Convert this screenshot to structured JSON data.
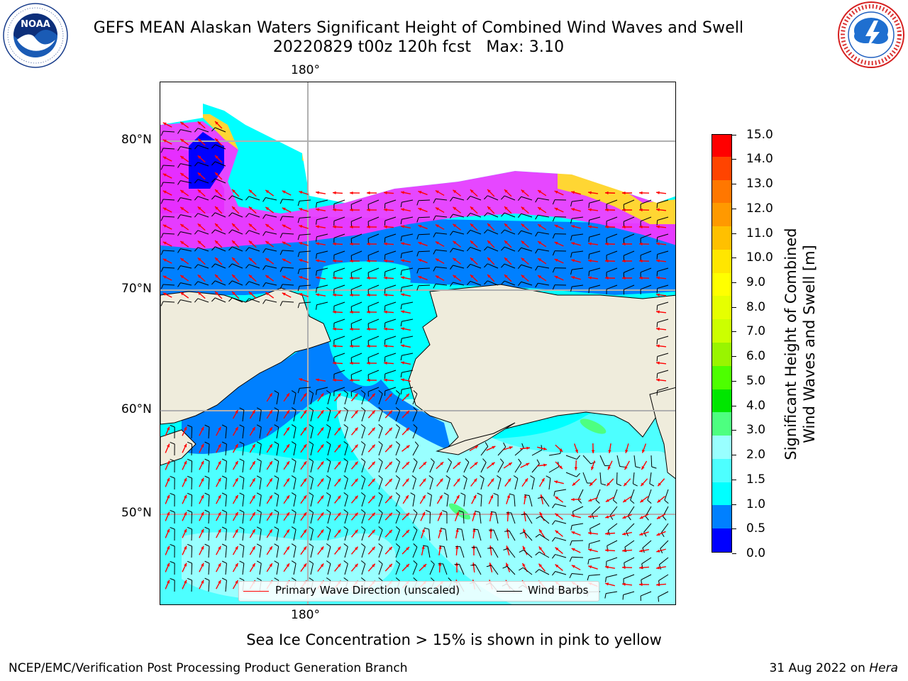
{
  "title": {
    "line1": "GEFS MEAN Alaskan Waters Significant Height of Combined Wind Waves and Swell",
    "line2": "20220829 t00z 120h fcst   Max: 3.10"
  },
  "logos": {
    "left": {
      "name": "noaa-logo",
      "text": "NOAA",
      "ring_text": "NATIONAL OCEANIC AND ATMOSPHERIC ADMINISTRATION · U.S. DEPARTMENT OF COMMERCE"
    },
    "right": {
      "name": "national-weather-service-logo",
      "ring_text": "NATIONAL WEATHER SERVICE"
    }
  },
  "map": {
    "longitude_label_top": "180°",
    "longitude_label_bottom": "180°",
    "latitude_labels": [
      "80°N",
      "70°N",
      "60°N",
      "50°N"
    ],
    "colors": {
      "land": "#efecdc",
      "ice": "#ffffff",
      "wind_barb": "#000000",
      "wave_direction": "#ff0000"
    }
  },
  "legend": {
    "wave_direction": "Primary Wave Direction (unscaled)",
    "wind_barbs": "Wind Barbs"
  },
  "colorbar": {
    "ticks": [
      "15.0",
      "14.0",
      "13.0",
      "12.0",
      "11.0",
      "10.0",
      "9.0",
      "8.0",
      "7.0",
      "6.0",
      "5.0",
      "4.0",
      "3.0",
      "2.0",
      "1.5",
      "1.0",
      "0.5",
      "0.0"
    ],
    "colors": [
      "#0000ff",
      "#0080ff",
      "#00ffff",
      "#4dffff",
      "#99ffff",
      "#4dff80",
      "#00e600",
      "#4dff00",
      "#99f500",
      "#ccff00",
      "#e6ff00",
      "#ffff00",
      "#ffe600",
      "#ffc000",
      "#ff9900",
      "#ff7700",
      "#ff4400",
      "#ff0000"
    ],
    "title_line1": "Significant Height of Combined",
    "title_line2": "Wind Waves and Swell [m]"
  },
  "caption": "Sea Ice Concentration > 15% is shown in pink to yellow",
  "footer": {
    "left": "NCEP/EMC/Verification Post Processing Product Generation Branch",
    "right_date": "31 Aug 2022 on ",
    "right_machine": "Hera"
  }
}
